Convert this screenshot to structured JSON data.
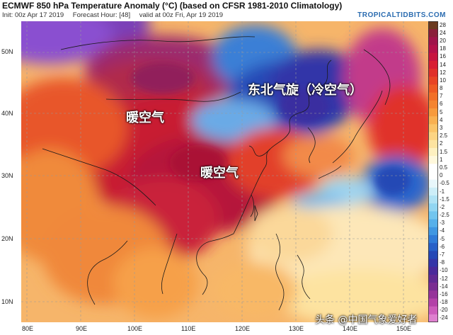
{
  "header": {
    "title": "ECMWF 850 hPa Temperature Anomaly (°C) (based on CFSR 1981-2010 Climatology)",
    "init": "Init: 00z Apr 17 2019",
    "forecast_hour": "Forecast Hour: [48]",
    "valid": "valid at 00z Fri, Apr 19 2019",
    "brand": "TROPICALTIDBITS.COM"
  },
  "map": {
    "lat_labels": [
      "50N",
      "40N",
      "30N",
      "20N",
      "10N"
    ],
    "lon_labels": [
      "80E",
      "90E",
      "100E",
      "110E",
      "120E",
      "130E",
      "140E",
      "150E"
    ],
    "annotations": {
      "warm_air_1": "暖空气",
      "warm_air_2": "暖空气",
      "northeast_cyclone": "东北气旋（冷空气）"
    },
    "watermark": "头条 @中国气象爱好者"
  },
  "colorbar": {
    "labels": [
      "28",
      "24",
      "20",
      "18",
      "16",
      "14",
      "12",
      "10",
      "8",
      "7",
      "6",
      "5",
      "4",
      "3",
      "2.5",
      "2",
      "1.5",
      "1",
      "0.5",
      "0",
      "-0.5",
      "-1",
      "-1.5",
      "-2",
      "-2.5",
      "-3",
      "-4",
      "-5",
      "-6",
      "-7",
      "-8",
      "-10",
      "-12",
      "-14",
      "-16",
      "-18",
      "-20",
      "-24"
    ],
    "colors": [
      "#6b3a1f",
      "#8a1f3a",
      "#a0144a",
      "#b4124a",
      "#c7153f",
      "#d81e33",
      "#e0302a",
      "#e84425",
      "#ee5a24",
      "#f27028",
      "#f5842f",
      "#f79a3c",
      "#f9b050",
      "#fbc468",
      "#fcd483",
      "#fde3a0",
      "#fef0c0",
      "#fff8dc",
      "#ffffff",
      "#ffffff",
      "#e8f7fb",
      "#cdeef8",
      "#b0e3f5",
      "#92d6f2",
      "#72c5ee",
      "#56b0ea",
      "#3f97e2",
      "#2f7bd8",
      "#2760c8",
      "#2548b6",
      "#3536a8",
      "#4a2a9a",
      "#612a93",
      "#7a2d92",
      "#96349a",
      "#b342a8",
      "#cc5cbb",
      "#de80cf"
    ]
  }
}
